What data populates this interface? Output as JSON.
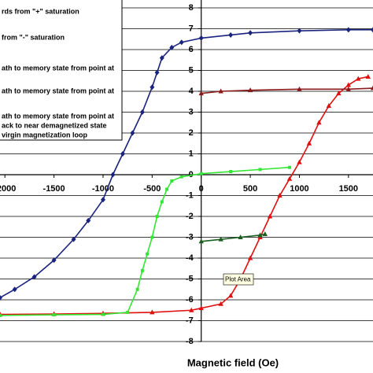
{
  "chart_data": {
    "type": "line",
    "x_label": "Magnetic field (Oe)",
    "annotation": "Plot Area",
    "xlim": [
      -2050,
      1750
    ],
    "ylim": [
      -8,
      8
    ],
    "xticks": [
      -2000,
      -1500,
      -1000,
      -500,
      0,
      500,
      1000,
      1500
    ],
    "yticks": [
      -8,
      -7,
      -6,
      -5,
      -4,
      -3,
      -2,
      -1,
      0,
      1,
      2,
      3,
      4,
      5,
      6,
      7,
      8
    ],
    "grid": true,
    "legend_extra": [
      "ack to near demagnetized state",
      "virgin magnetization loop"
    ],
    "series": [
      {
        "name": "rds from \"+\" saturation",
        "color": "#1a237e",
        "marker": "diamond",
        "x": [
          1750,
          1500,
          1000,
          500,
          300,
          0,
          -200,
          -300,
          -400,
          -450,
          -500,
          -600,
          -700,
          -800,
          -900,
          -1000,
          -1150,
          -1300,
          -1500,
          -1700,
          -1900,
          -2050
        ],
        "values": [
          6.95,
          6.95,
          6.9,
          6.8,
          6.7,
          6.55,
          6.35,
          6.1,
          5.6,
          4.9,
          4.2,
          3.0,
          2.0,
          1.0,
          0,
          -1.2,
          -2.2,
          -3.1,
          -4.1,
          -4.9,
          -5.5,
          -5.9
        ]
      },
      {
        "name": "from \"-\" saturation",
        "color": "#e01010",
        "marker": "triangle",
        "x": [
          -2050,
          -1500,
          -1000,
          -500,
          -100,
          0,
          200,
          300,
          400,
          500,
          600,
          700,
          800,
          900,
          1000,
          1100,
          1200,
          1300,
          1400,
          1500,
          1600,
          1700
        ],
        "values": [
          -6.7,
          -6.68,
          -6.65,
          -6.6,
          -6.5,
          -6.4,
          -6.2,
          -5.8,
          -5.0,
          -4.0,
          -3.0,
          -2.0,
          -1.0,
          -0.2,
          0.6,
          1.5,
          2.5,
          3.3,
          3.9,
          4.3,
          4.6,
          4.7
        ]
      },
      {
        "name": "ath to memory state from point at",
        "color": "#8b1a1a",
        "marker": "triangle",
        "x": [
          0,
          200,
          500,
          1000,
          1500,
          1750
        ],
        "values": [
          3.9,
          4.0,
          4.05,
          4.1,
          4.1,
          4.15
        ]
      },
      {
        "name": "ath to memory state from point at",
        "color": "#1b5e20",
        "marker": "triangle",
        "x": [
          0,
          200,
          400,
          600,
          650
        ],
        "values": [
          -3.2,
          -3.1,
          -3.0,
          -2.9,
          -2.85
        ]
      },
      {
        "name": "ath to memory state from point at",
        "color": "#33e633",
        "marker": "dot",
        "x": [
          -2050,
          -1500,
          -1000,
          -750,
          -650,
          -600,
          -550,
          -500,
          -450,
          -400,
          -350,
          -300,
          -200,
          0,
          300,
          600,
          900
        ],
        "values": [
          -6.75,
          -6.72,
          -6.7,
          -6.6,
          -5.5,
          -4.6,
          -3.8,
          -3.0,
          -2.0,
          -1.3,
          -0.7,
          -0.3,
          -0.1,
          0.05,
          0.15,
          0.25,
          0.35
        ]
      }
    ]
  }
}
